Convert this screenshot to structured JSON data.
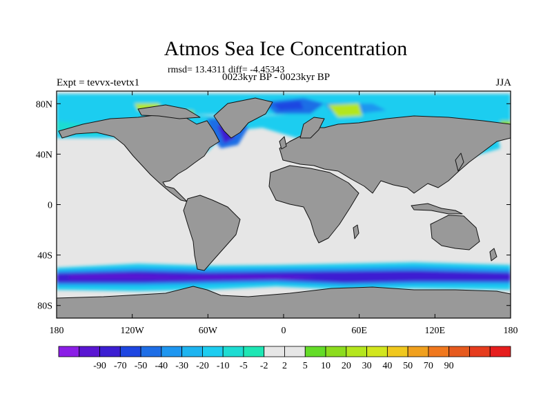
{
  "title": "Atmos Sea Ice Concentration",
  "stats": "rmsd= 13.4311 diff= -4.45343",
  "subtitle": "0023kyr BP - 0023kyr BP",
  "experiment": "Expt = tevvx-tevtx1",
  "season": "JJA",
  "map": {
    "projection": "cylindrical equidistant",
    "lon_range": [
      -180,
      180
    ],
    "lat_range": [
      -90,
      90
    ],
    "land_color": "#999999",
    "no_change_color": "#e6e6e6",
    "lat_ticks": [
      {
        "lat": 80,
        "label": "80N"
      },
      {
        "lat": 40,
        "label": "40N"
      },
      {
        "lat": 0,
        "label": "0"
      },
      {
        "lat": -40,
        "label": "40S"
      },
      {
        "lat": -80,
        "label": "80S"
      }
    ],
    "lon_ticks": [
      {
        "lon": -180,
        "label": "180"
      },
      {
        "lon": -120,
        "label": "120W"
      },
      {
        "lon": -60,
        "label": "60W"
      },
      {
        "lon": 0,
        "label": "0"
      },
      {
        "lon": 60,
        "label": "60E"
      },
      {
        "lon": 120,
        "label": "120E"
      },
      {
        "lon": 180,
        "label": "180"
      }
    ]
  },
  "colorbar": {
    "colors": [
      "#8b1ee6",
      "#5a16d2",
      "#3c1ed2",
      "#1e46e1",
      "#1e6ee6",
      "#1e96f0",
      "#1eb4f0",
      "#1ecdf0",
      "#1edcd2",
      "#1ee6b4",
      "#e6e6e6",
      "#e6e6e6",
      "#64dc28",
      "#8cdc1e",
      "#b4e61e",
      "#d2e61e",
      "#f0c81e",
      "#f0a01e",
      "#f0781e",
      "#e65a1e",
      "#e63c1e",
      "#e61e1e"
    ],
    "labels": [
      "-90",
      "-70",
      "-50",
      "-40",
      "-30",
      "-20",
      "-10",
      "-5",
      "-2",
      "2",
      "5",
      "10",
      "20",
      "30",
      "40",
      "50",
      "70",
      "90"
    ]
  }
}
